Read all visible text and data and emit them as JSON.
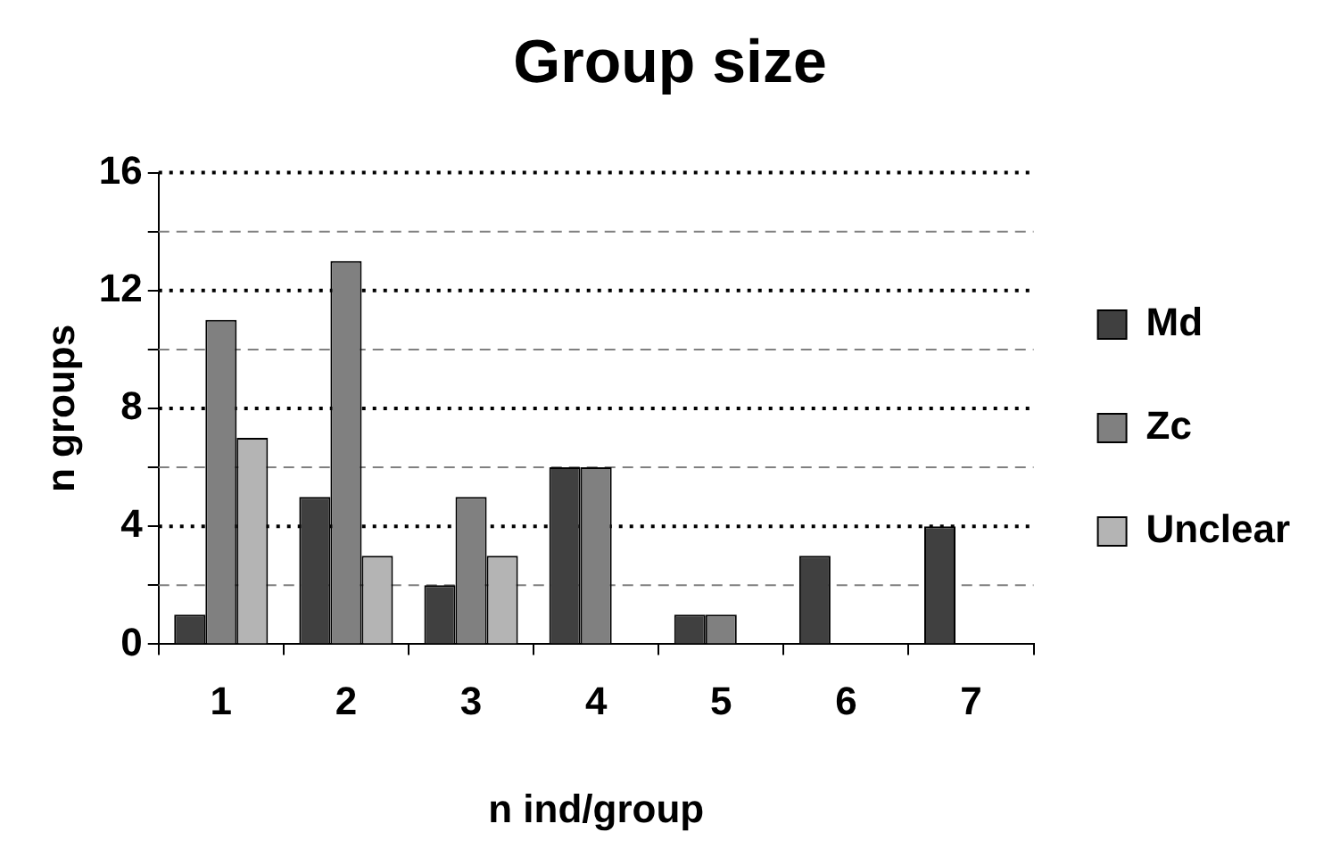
{
  "chart_data": {
    "type": "bar",
    "title": "Group size",
    "xlabel": "n ind/group",
    "ylabel": "n groups",
    "categories": [
      "1",
      "2",
      "3",
      "4",
      "5",
      "6",
      "7"
    ],
    "series": [
      {
        "name": "Md",
        "color": "#404040",
        "values": [
          1,
          5,
          2,
          6,
          1,
          3,
          4
        ]
      },
      {
        "name": "Zc",
        "color": "#808080",
        "values": [
          11,
          13,
          5,
          6,
          1,
          0,
          0
        ]
      },
      {
        "name": "Unclear",
        "color": "#b4b4b4",
        "values": [
          7,
          3,
          3,
          0,
          0,
          0,
          0
        ]
      }
    ],
    "ylim": [
      0,
      16
    ],
    "yticks": [
      0,
      {
        "value": 2,
        "label": null
      },
      4,
      {
        "value": 6,
        "label": null
      },
      8,
      {
        "value": 10,
        "label": null
      },
      12,
      {
        "value": 14,
        "label": null
      },
      16
    ],
    "grid": "y",
    "legend": "right"
  }
}
